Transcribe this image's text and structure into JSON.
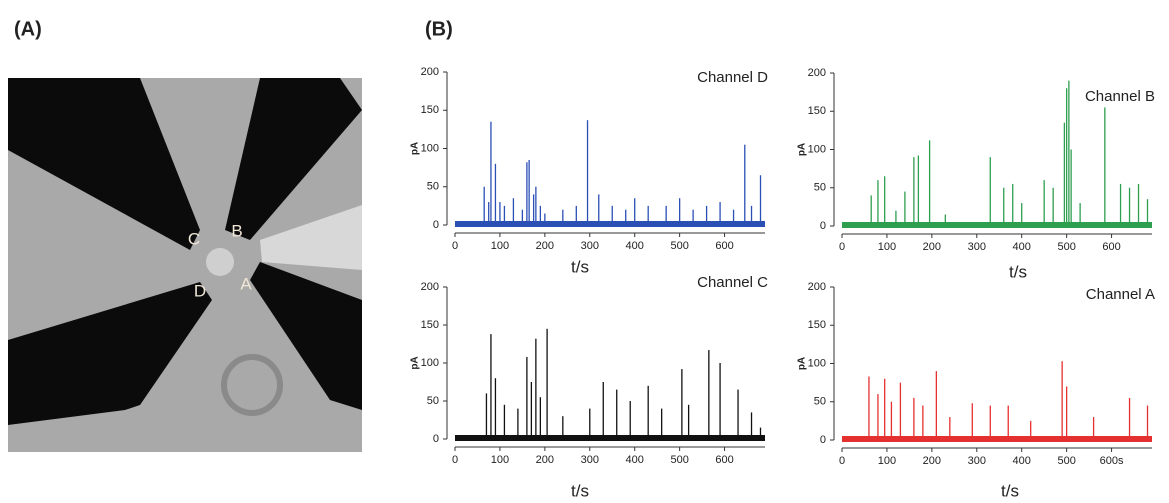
{
  "panel_labels": [
    "(A)",
    "(B)"
  ],
  "electrode_labels": [
    "C",
    "B",
    "D",
    "A"
  ],
  "chart_data": [
    {
      "type": "stem",
      "title": "Channel D",
      "xlabel": "t/s",
      "ylabel": "pA",
      "color": "#2a4fb5",
      "xlim": [
        0,
        690
      ],
      "ylim": [
        0,
        200
      ],
      "xticks": [
        0,
        100,
        200,
        300,
        400,
        500,
        600
      ],
      "yticks": [
        0,
        50,
        100,
        150,
        200
      ],
      "x": [
        65,
        75,
        80,
        90,
        100,
        110,
        130,
        150,
        160,
        165,
        175,
        180,
        190,
        200,
        240,
        270,
        295,
        320,
        350,
        380,
        400,
        430,
        470,
        500,
        530,
        560,
        590,
        620,
        645,
        660,
        680
      ],
      "values": [
        50,
        30,
        135,
        80,
        30,
        25,
        35,
        20,
        82,
        85,
        40,
        50,
        25,
        15,
        20,
        25,
        137,
        40,
        25,
        20,
        35,
        25,
        25,
        35,
        20,
        25,
        30,
        20,
        105,
        25,
        65
      ]
    },
    {
      "type": "stem",
      "title": "Channel B",
      "xlabel": "t/s",
      "ylabel": "pA",
      "color": "#2e9e4f",
      "xlim": [
        0,
        690
      ],
      "ylim": [
        0,
        200
      ],
      "xticks": [
        0,
        100,
        200,
        300,
        400,
        500,
        600
      ],
      "yticks": [
        0,
        50,
        100,
        150,
        200
      ],
      "x": [
        65,
        80,
        95,
        120,
        140,
        160,
        170,
        195,
        230,
        330,
        360,
        380,
        400,
        450,
        470,
        495,
        500,
        505,
        510,
        530,
        585,
        620,
        640,
        660,
        680
      ],
      "values": [
        40,
        60,
        65,
        20,
        45,
        90,
        92,
        112,
        15,
        90,
        50,
        55,
        30,
        60,
        50,
        135,
        180,
        190,
        100,
        30,
        155,
        55,
        50,
        55,
        35
      ]
    },
    {
      "type": "stem",
      "title": "Channel C",
      "xlabel": "t/s",
      "ylabel": "pA",
      "color": "#111111",
      "xlim": [
        0,
        690
      ],
      "ylim": [
        0,
        200
      ],
      "xticks": [
        0,
        100,
        200,
        300,
        400,
        500,
        600
      ],
      "yticks": [
        0,
        50,
        100,
        150,
        200
      ],
      "x": [
        70,
        80,
        90,
        110,
        140,
        160,
        170,
        180,
        190,
        205,
        240,
        300,
        330,
        360,
        390,
        430,
        460,
        505,
        520,
        565,
        590,
        630,
        660,
        680
      ],
      "values": [
        60,
        138,
        80,
        45,
        40,
        108,
        75,
        132,
        55,
        145,
        30,
        40,
        75,
        65,
        50,
        70,
        40,
        92,
        45,
        117,
        100,
        65,
        35,
        15
      ]
    },
    {
      "type": "stem",
      "title": "Channel A",
      "xlabel": "t/s",
      "ylabel": "pA",
      "color": "#e53030",
      "xlim": [
        0,
        690
      ],
      "ylim": [
        0,
        200
      ],
      "xticks": [
        0,
        100,
        200,
        300,
        400,
        500,
        {
          "value": 600,
          "label": "600s"
        }
      ],
      "yticks": [
        0,
        50,
        100,
        150,
        200
      ],
      "x": [
        60,
        80,
        95,
        110,
        130,
        160,
        180,
        210,
        240,
        290,
        330,
        370,
        420,
        490,
        500,
        560,
        640,
        680
      ],
      "values": [
        83,
        60,
        80,
        50,
        75,
        55,
        45,
        90,
        30,
        48,
        45,
        45,
        25,
        103,
        70,
        30,
        55,
        45
      ]
    }
  ]
}
